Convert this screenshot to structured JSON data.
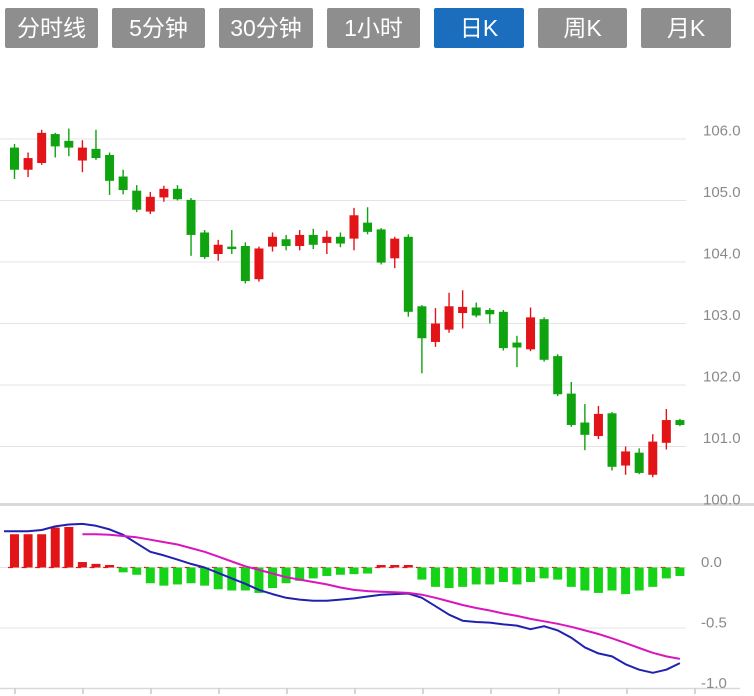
{
  "tabs": [
    {
      "label": "分时线",
      "active": false
    },
    {
      "label": "5分钟",
      "active": false
    },
    {
      "label": "30分钟",
      "active": false
    },
    {
      "label": "1小时",
      "active": false
    },
    {
      "label": "日K",
      "active": true
    },
    {
      "label": "周K",
      "active": false
    },
    {
      "label": "月K",
      "active": false
    }
  ],
  "colors": {
    "tab_active": "#1b6dbe",
    "tab_inactive": "#8e8e8e",
    "up": "#e31418",
    "down": "#0fa30f",
    "hist_up": "#e31418",
    "hist_down": "#17d317",
    "dif_line": "#2121b0",
    "dea_line": "#d916be",
    "grid": "#e4e4e4",
    "separator": "#d9d9d9",
    "axis_tick": "#c9c9c9",
    "label": "#8a8a8a",
    "zero_dash": "#e31418"
  },
  "chart_data": {
    "type": "candlestick",
    "title": "",
    "xlabel": "",
    "ylabel": "",
    "legend": "none",
    "grid": "horizontal",
    "panels": {
      "price": {
        "ylim": [
          100.3,
          106.6
        ],
        "yticks": [
          {
            "v": 106.0,
            "label": "106.0"
          },
          {
            "v": 105.0,
            "label": "105.0"
          },
          {
            "v": 104.0,
            "label": "104.0"
          },
          {
            "v": 103.0,
            "label": "103.0"
          },
          {
            "v": 102.0,
            "label": "102.0"
          },
          {
            "v": 101.0,
            "label": "101.0"
          },
          {
            "v": 100.0,
            "label": "100.0"
          }
        ]
      },
      "macd": {
        "ylim": [
          -1.0,
          0.45
        ],
        "yticks": [
          {
            "v": 0.0,
            "label": "0.0"
          },
          {
            "v": -0.5,
            "label": "-0.5"
          },
          {
            "v": -1.0,
            "label": "-1.0"
          }
        ]
      }
    },
    "candles_format": [
      "open",
      "high",
      "low",
      "close"
    ],
    "candles": [
      [
        105.86,
        105.92,
        105.35,
        105.5
      ],
      [
        105.5,
        105.78,
        105.38,
        105.69
      ],
      [
        105.61,
        106.15,
        105.58,
        106.1
      ],
      [
        106.08,
        106.1,
        105.7,
        105.88
      ],
      [
        105.97,
        106.17,
        105.72,
        105.86
      ],
      [
        105.65,
        105.98,
        105.46,
        105.86
      ],
      [
        105.84,
        106.15,
        105.66,
        105.69
      ],
      [
        105.74,
        105.78,
        105.09,
        105.32
      ],
      [
        105.39,
        105.5,
        105.1,
        105.17
      ],
      [
        105.16,
        105.25,
        104.81,
        104.85
      ],
      [
        104.82,
        105.14,
        104.78,
        105.06
      ],
      [
        105.05,
        105.24,
        104.98,
        105.19
      ],
      [
        105.19,
        105.25,
        105.0,
        105.02
      ],
      [
        105.01,
        105.04,
        104.1,
        104.44
      ],
      [
        104.48,
        104.52,
        104.05,
        104.08
      ],
      [
        104.13,
        104.36,
        104.02,
        104.28
      ],
      [
        104.25,
        104.52,
        104.13,
        104.21
      ],
      [
        104.26,
        104.32,
        103.65,
        103.69
      ],
      [
        103.72,
        104.25,
        103.68,
        104.22
      ],
      [
        104.25,
        104.48,
        104.17,
        104.41
      ],
      [
        104.37,
        104.44,
        104.19,
        104.26
      ],
      [
        104.26,
        104.52,
        104.19,
        104.44
      ],
      [
        104.44,
        104.54,
        104.21,
        104.28
      ],
      [
        104.31,
        104.51,
        104.13,
        104.41
      ],
      [
        104.41,
        104.48,
        104.24,
        104.3
      ],
      [
        104.38,
        104.88,
        104.19,
        104.76
      ],
      [
        104.64,
        104.89,
        104.45,
        104.49
      ],
      [
        104.53,
        104.55,
        103.96,
        103.99
      ],
      [
        104.06,
        104.41,
        103.9,
        104.38
      ],
      [
        104.41,
        104.45,
        103.11,
        103.19
      ],
      [
        103.28,
        103.3,
        102.19,
        102.76
      ],
      [
        102.7,
        103.25,
        102.62,
        103.0
      ],
      [
        102.9,
        103.5,
        102.85,
        103.28
      ],
      [
        103.17,
        103.54,
        102.92,
        103.27
      ],
      [
        103.26,
        103.34,
        103.1,
        103.13
      ],
      [
        103.22,
        103.25,
        103.0,
        103.15
      ],
      [
        103.19,
        103.22,
        102.56,
        102.6
      ],
      [
        102.69,
        102.8,
        102.29,
        102.61
      ],
      [
        102.58,
        103.26,
        102.55,
        103.1
      ],
      [
        103.07,
        103.1,
        102.38,
        102.41
      ],
      [
        102.47,
        102.5,
        101.82,
        101.85
      ],
      [
        101.86,
        102.05,
        101.32,
        101.35
      ],
      [
        101.39,
        101.69,
        100.94,
        101.19
      ],
      [
        101.17,
        101.66,
        101.12,
        101.53
      ],
      [
        101.54,
        101.56,
        100.61,
        100.67
      ],
      [
        100.69,
        101.0,
        100.54,
        100.92
      ],
      [
        100.9,
        100.97,
        100.55,
        100.57
      ],
      [
        100.54,
        101.2,
        100.5,
        101.08
      ],
      [
        101.06,
        101.61,
        100.95,
        101.43
      ],
      [
        101.43,
        101.45,
        101.33,
        101.35
      ]
    ],
    "macd": {
      "histogram": [
        0.275,
        0.275,
        0.275,
        0.33,
        0.335,
        0.045,
        0.03,
        0.012,
        -0.04,
        -0.06,
        -0.13,
        -0.15,
        -0.14,
        -0.13,
        -0.15,
        -0.18,
        -0.19,
        -0.19,
        -0.21,
        -0.17,
        -0.13,
        -0.11,
        -0.09,
        -0.07,
        -0.06,
        -0.055,
        -0.05,
        0.02,
        0.008,
        0.012,
        -0.1,
        -0.16,
        -0.17,
        -0.16,
        -0.14,
        -0.14,
        -0.12,
        -0.14,
        -0.12,
        -0.09,
        -0.1,
        -0.16,
        -0.19,
        -0.21,
        -0.19,
        -0.22,
        -0.19,
        -0.16,
        -0.09,
        -0.07
      ],
      "dif": [
        0.3,
        0.3,
        0.31,
        0.34,
        0.355,
        0.36,
        0.345,
        0.315,
        0.27,
        0.2,
        0.13,
        0.1,
        0.065,
        0.03,
        0.0,
        -0.045,
        -0.09,
        -0.135,
        -0.185,
        -0.22,
        -0.25,
        -0.265,
        -0.275,
        -0.275,
        -0.265,
        -0.255,
        -0.24,
        -0.225,
        -0.22,
        -0.215,
        -0.25,
        -0.32,
        -0.39,
        -0.44,
        -0.45,
        -0.455,
        -0.47,
        -0.48,
        -0.51,
        -0.485,
        -0.52,
        -0.58,
        -0.66,
        -0.71,
        -0.735,
        -0.8,
        -0.845,
        -0.87,
        -0.845,
        -0.79
      ],
      "dea": [
        null,
        null,
        null,
        null,
        null,
        0.275,
        0.275,
        0.27,
        0.26,
        0.25,
        0.23,
        0.21,
        0.19,
        0.16,
        0.13,
        0.09,
        0.05,
        0.01,
        -0.02,
        -0.05,
        -0.08,
        -0.1,
        -0.12,
        -0.14,
        -0.165,
        -0.185,
        -0.195,
        -0.2,
        -0.205,
        -0.21,
        -0.225,
        -0.25,
        -0.28,
        -0.31,
        -0.335,
        -0.355,
        -0.38,
        -0.4,
        -0.425,
        -0.445,
        -0.465,
        -0.49,
        -0.52,
        -0.55,
        -0.585,
        -0.625,
        -0.665,
        -0.705,
        -0.735,
        -0.755
      ]
    }
  }
}
